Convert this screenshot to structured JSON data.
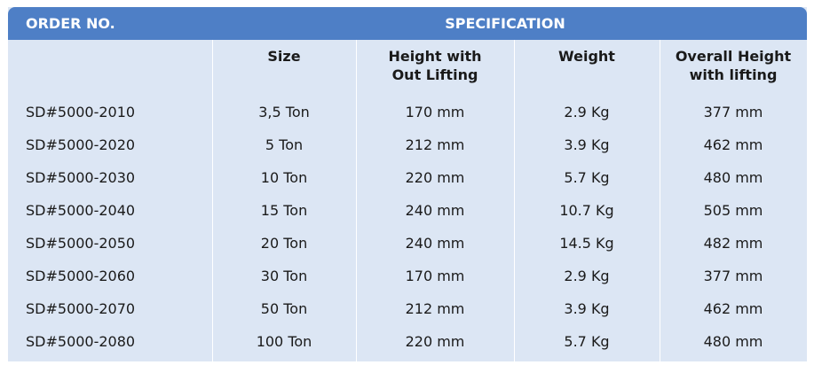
{
  "header": {
    "order_label": "ORDER NO.",
    "spec_label": "SPECIFICATION",
    "col_size": "Size",
    "col_height_l1": "Height with",
    "col_height_l2": "Out Lifting",
    "col_weight": "Weight",
    "col_overall_l1": "Overall Height",
    "col_overall_l2": "with lifting"
  },
  "rows": [
    [
      "SD#5000-2010",
      "3,5 Ton",
      "170 mm",
      "2.9 Kg",
      "377 mm"
    ],
    [
      "SD#5000-2020",
      "5 Ton",
      "212 mm",
      "3.9 Kg",
      "462 mm"
    ],
    [
      "SD#5000-2030",
      "10 Ton",
      "220 mm",
      "5.7 Kg",
      "480 mm"
    ],
    [
      "SD#5000-2040",
      "15 Ton",
      "240 mm",
      "10.7 Kg",
      "505 mm"
    ],
    [
      "SD#5000-2050",
      "20 Ton",
      "240 mm",
      "14.5 Kg",
      "482 mm"
    ],
    [
      "SD#5000-2060",
      "30 Ton",
      "170 mm",
      "2.9 Kg",
      "377 mm"
    ],
    [
      "SD#5000-2070",
      "50 Ton",
      "212 mm",
      "3.9 Kg",
      "462 mm"
    ],
    [
      "SD#5000-2080",
      "100 Ton",
      "220 mm",
      "5.7 Kg",
      "480 mm"
    ]
  ]
}
